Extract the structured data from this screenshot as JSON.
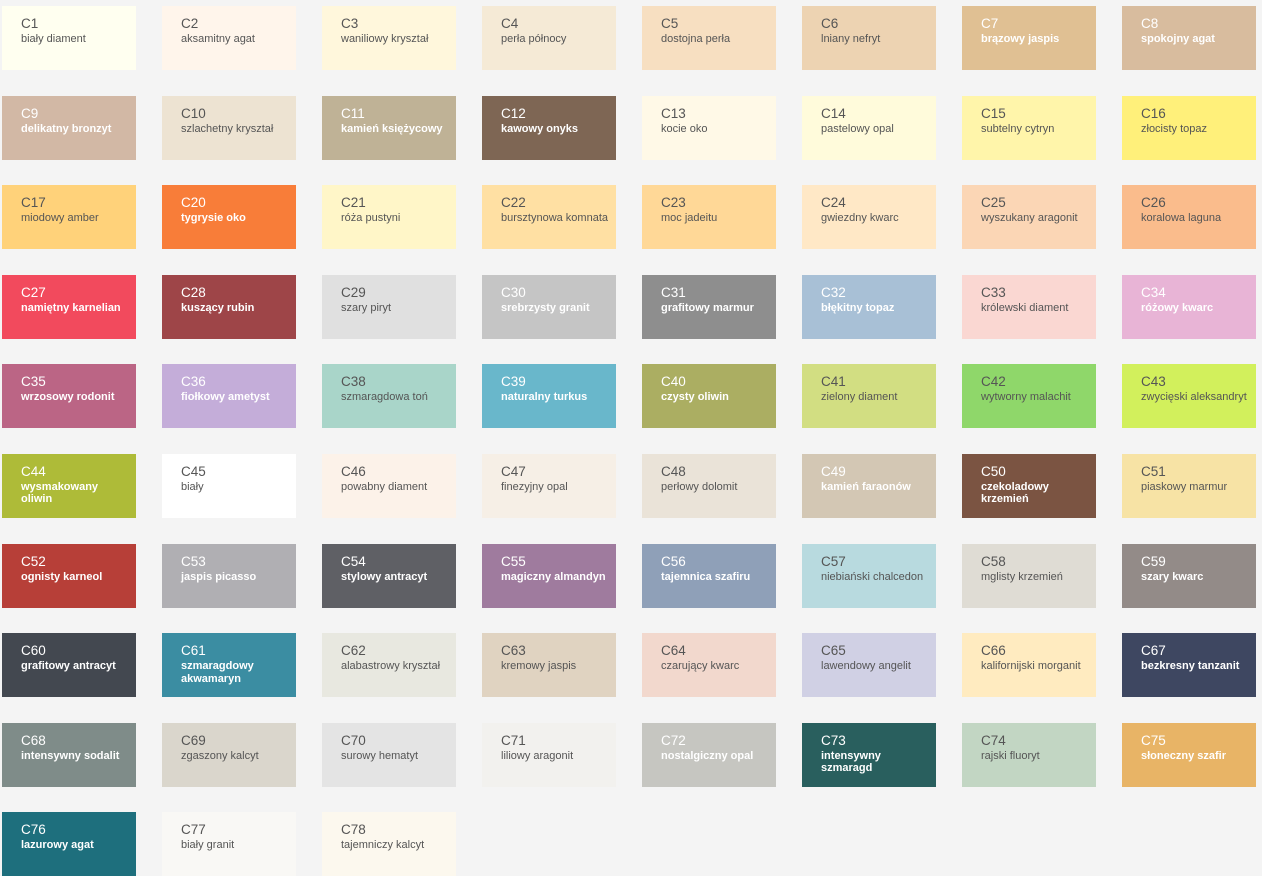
{
  "swatches": [
    {
      "code": "C1",
      "name": "biały diament",
      "color": "#FFFFF0",
      "text": "dark"
    },
    {
      "code": "C2",
      "name": "aksamitny agat",
      "color": "#FFF5EB",
      "text": "dark"
    },
    {
      "code": "C3",
      "name": "waniliowy kryształ",
      "color": "#FFF7DC",
      "text": "dark"
    },
    {
      "code": "C4",
      "name": "perła północy",
      "color": "#F5EAD6",
      "text": "dark"
    },
    {
      "code": "C5",
      "name": "dostojna perła",
      "color": "#F7DFC1",
      "text": "dark"
    },
    {
      "code": "C6",
      "name": "lniany nefryt",
      "color": "#EDD3B2",
      "text": "dark"
    },
    {
      "code": "C7",
      "name": "brązowy jaspis",
      "color": "#E0C093",
      "text": "light"
    },
    {
      "code": "C8",
      "name": "spokojny agat",
      "color": "#D8BC9E",
      "text": "light"
    },
    {
      "code": "C9",
      "name": "delikatny bronzyt",
      "color": "#D2B8A5",
      "text": "light"
    },
    {
      "code": "C10",
      "name": "szlachetny kryształ",
      "color": "#EDE3D2",
      "text": "dark"
    },
    {
      "code": "C11",
      "name": "kamień księżycowy",
      "color": "#BFB296",
      "text": "light"
    },
    {
      "code": "C12",
      "name": "kawowy onyks",
      "color": "#7E6654",
      "text": "light"
    },
    {
      "code": "C13",
      "name": "kocie oko",
      "color": "#FFF9E7",
      "text": "dark"
    },
    {
      "code": "C14",
      "name": "pastelowy opal",
      "color": "#FFFBDB",
      "text": "dark"
    },
    {
      "code": "C15",
      "name": "subtelny cytryn",
      "color": "#FFF5AA",
      "text": "dark"
    },
    {
      "code": "C16",
      "name": "złocisty topaz",
      "color": "#FFF07A",
      "text": "dark"
    },
    {
      "code": "C17",
      "name": "miodowy amber",
      "color": "#FFD27A",
      "text": "dark"
    },
    {
      "code": "C20",
      "name": "tygrysie oko",
      "color": "#F87D39",
      "text": "light"
    },
    {
      "code": "C21",
      "name": "róża pustyni",
      "color": "#FFF6C8",
      "text": "dark"
    },
    {
      "code": "C22",
      "name": "bursztynowa komnata",
      "color": "#FFE0A3",
      "text": "dark"
    },
    {
      "code": "C23",
      "name": "moc jadeitu",
      "color": "#FFD897",
      "text": "dark"
    },
    {
      "code": "C24",
      "name": "gwiezdny kwarc",
      "color": "#FFE8C6",
      "text": "dark"
    },
    {
      "code": "C25",
      "name": "wyszukany aragonit",
      "color": "#FBD6B5",
      "text": "dark"
    },
    {
      "code": "C26",
      "name": "koralowa laguna",
      "color": "#FABC8C",
      "text": "dark"
    },
    {
      "code": "C27",
      "name": "namiętny karnelian",
      "color": "#F24A5D",
      "text": "light"
    },
    {
      "code": "C28",
      "name": "kuszący rubin",
      "color": "#9E4548",
      "text": "light"
    },
    {
      "code": "C29",
      "name": "szary piryt",
      "color": "#E0E0E0",
      "text": "dark"
    },
    {
      "code": "C30",
      "name": "srebrzysty granit",
      "color": "#C5C5C5",
      "text": "light"
    },
    {
      "code": "C31",
      "name": "grafitowy marmur",
      "color": "#8E8E8E",
      "text": "light"
    },
    {
      "code": "C32",
      "name": "błękitny topaz",
      "color": "#A8C0D6",
      "text": "light"
    },
    {
      "code": "C33",
      "name": "królewski diament",
      "color": "#FAD7D2",
      "text": "dark"
    },
    {
      "code": "C34",
      "name": "różowy kwarc",
      "color": "#E8B4D6",
      "text": "light"
    },
    {
      "code": "C35",
      "name": "wrzosowy rodonit",
      "color": "#BB6585",
      "text": "light"
    },
    {
      "code": "C36",
      "name": "fiołkowy ametyst",
      "color": "#C4ADD9",
      "text": "light"
    },
    {
      "code": "C38",
      "name": "szmaragdowa toń",
      "color": "#A9D5C9",
      "text": "dark"
    },
    {
      "code": "C39",
      "name": "naturalny turkus",
      "color": "#69B7CB",
      "text": "light"
    },
    {
      "code": "C40",
      "name": "czysty oliwin",
      "color": "#ABAE62",
      "text": "light"
    },
    {
      "code": "C41",
      "name": "zielony diament",
      "color": "#D2DE82",
      "text": "dark"
    },
    {
      "code": "C42",
      "name": "wytworny malachit",
      "color": "#8FD76A",
      "text": "dark"
    },
    {
      "code": "C43",
      "name": "zwycięski aleksandryt",
      "color": "#D2F05C",
      "text": "dark"
    },
    {
      "code": "C44",
      "name": "wysmakowany oliwin",
      "color": "#AEBB38",
      "text": "light"
    },
    {
      "code": "C45",
      "name": "biały",
      "color": "#FFFFFF",
      "text": "dark"
    },
    {
      "code": "C46",
      "name": "powabny diament",
      "color": "#FCF2E9",
      "text": "dark"
    },
    {
      "code": "C47",
      "name": "finezyjny opal",
      "color": "#F6EFE6",
      "text": "dark"
    },
    {
      "code": "C48",
      "name": "perłowy dolomit",
      "color": "#EAE3D8",
      "text": "dark"
    },
    {
      "code": "C49",
      "name": "kamień faraonów",
      "color": "#D3C7B4",
      "text": "light"
    },
    {
      "code": "C50",
      "name": "czekoladowy krzemień",
      "color": "#7B5442",
      "text": "light"
    },
    {
      "code": "C51",
      "name": "piaskowy marmur",
      "color": "#F7E3A5",
      "text": "dark"
    },
    {
      "code": "C52",
      "name": "ognisty karneol",
      "color": "#B73F38",
      "text": "light"
    },
    {
      "code": "C53",
      "name": "jaspis picasso",
      "color": "#B0AFB3",
      "text": "light"
    },
    {
      "code": "C54",
      "name": "stylowy antracyt",
      "color": "#5F6065",
      "text": "light"
    },
    {
      "code": "C55",
      "name": "magiczny almandyn",
      "color": "#9F7B9E",
      "text": "light"
    },
    {
      "code": "C56",
      "name": "tajemnica szafiru",
      "color": "#8FA0B8",
      "text": "light"
    },
    {
      "code": "C57",
      "name": "niebiański chalcedon",
      "color": "#B8DADF",
      "text": "dark"
    },
    {
      "code": "C58",
      "name": "mglisty krzemień",
      "color": "#DFDCD4",
      "text": "dark"
    },
    {
      "code": "C59",
      "name": "szary kwarc",
      "color": "#938B88",
      "text": "light"
    },
    {
      "code": "C60",
      "name": "grafitowy antracyt",
      "color": "#434850",
      "text": "light"
    },
    {
      "code": "C61",
      "name": "szmaragdowy akwamaryn",
      "color": "#3B8DA2",
      "text": "light"
    },
    {
      "code": "C62",
      "name": "alabastrowy kryształ",
      "color": "#E8E8E0",
      "text": "dark"
    },
    {
      "code": "C63",
      "name": "kremowy jaspis",
      "color": "#E0D3C1",
      "text": "dark"
    },
    {
      "code": "C64",
      "name": "czarujący kwarc",
      "color": "#F2D8CD",
      "text": "dark"
    },
    {
      "code": "C65",
      "name": "lawendowy angelit",
      "color": "#D0D0E4",
      "text": "dark"
    },
    {
      "code": "C66",
      "name": "kalifornijski morganit",
      "color": "#FFEBC0",
      "text": "dark"
    },
    {
      "code": "C67",
      "name": "bezkresny tanzanit",
      "color": "#3E4761",
      "text": "light"
    },
    {
      "code": "C68",
      "name": "intensywny sodalit",
      "color": "#7F8C89",
      "text": "light"
    },
    {
      "code": "C69",
      "name": "zgaszony kalcyt",
      "color": "#DAD6CC",
      "text": "dark"
    },
    {
      "code": "C70",
      "name": "surowy hematyt",
      "color": "#E4E4E4",
      "text": "dark"
    },
    {
      "code": "C71",
      "name": "liliowy aragonit",
      "color": "#F2F1EE",
      "text": "dark"
    },
    {
      "code": "C72",
      "name": "nostalgiczny opal",
      "color": "#C6C6C1",
      "text": "light"
    },
    {
      "code": "C73",
      "name": "intensywny szmaragd",
      "color": "#295F5E",
      "text": "light"
    },
    {
      "code": "C74",
      "name": "rajski fluoryt",
      "color": "#C2D6C3",
      "text": "dark"
    },
    {
      "code": "C75",
      "name": "słoneczny szafir",
      "color": "#E8B466",
      "text": "light"
    },
    {
      "code": "C76",
      "name": "lazurowy agat",
      "color": "#1E6F7D",
      "text": "light"
    },
    {
      "code": "C77",
      "name": "biały granit",
      "color": "#F9F8F5",
      "text": "dark"
    },
    {
      "code": "C78",
      "name": "tajemniczy kalcyt",
      "color": "#FCF8EE",
      "text": "dark"
    }
  ]
}
